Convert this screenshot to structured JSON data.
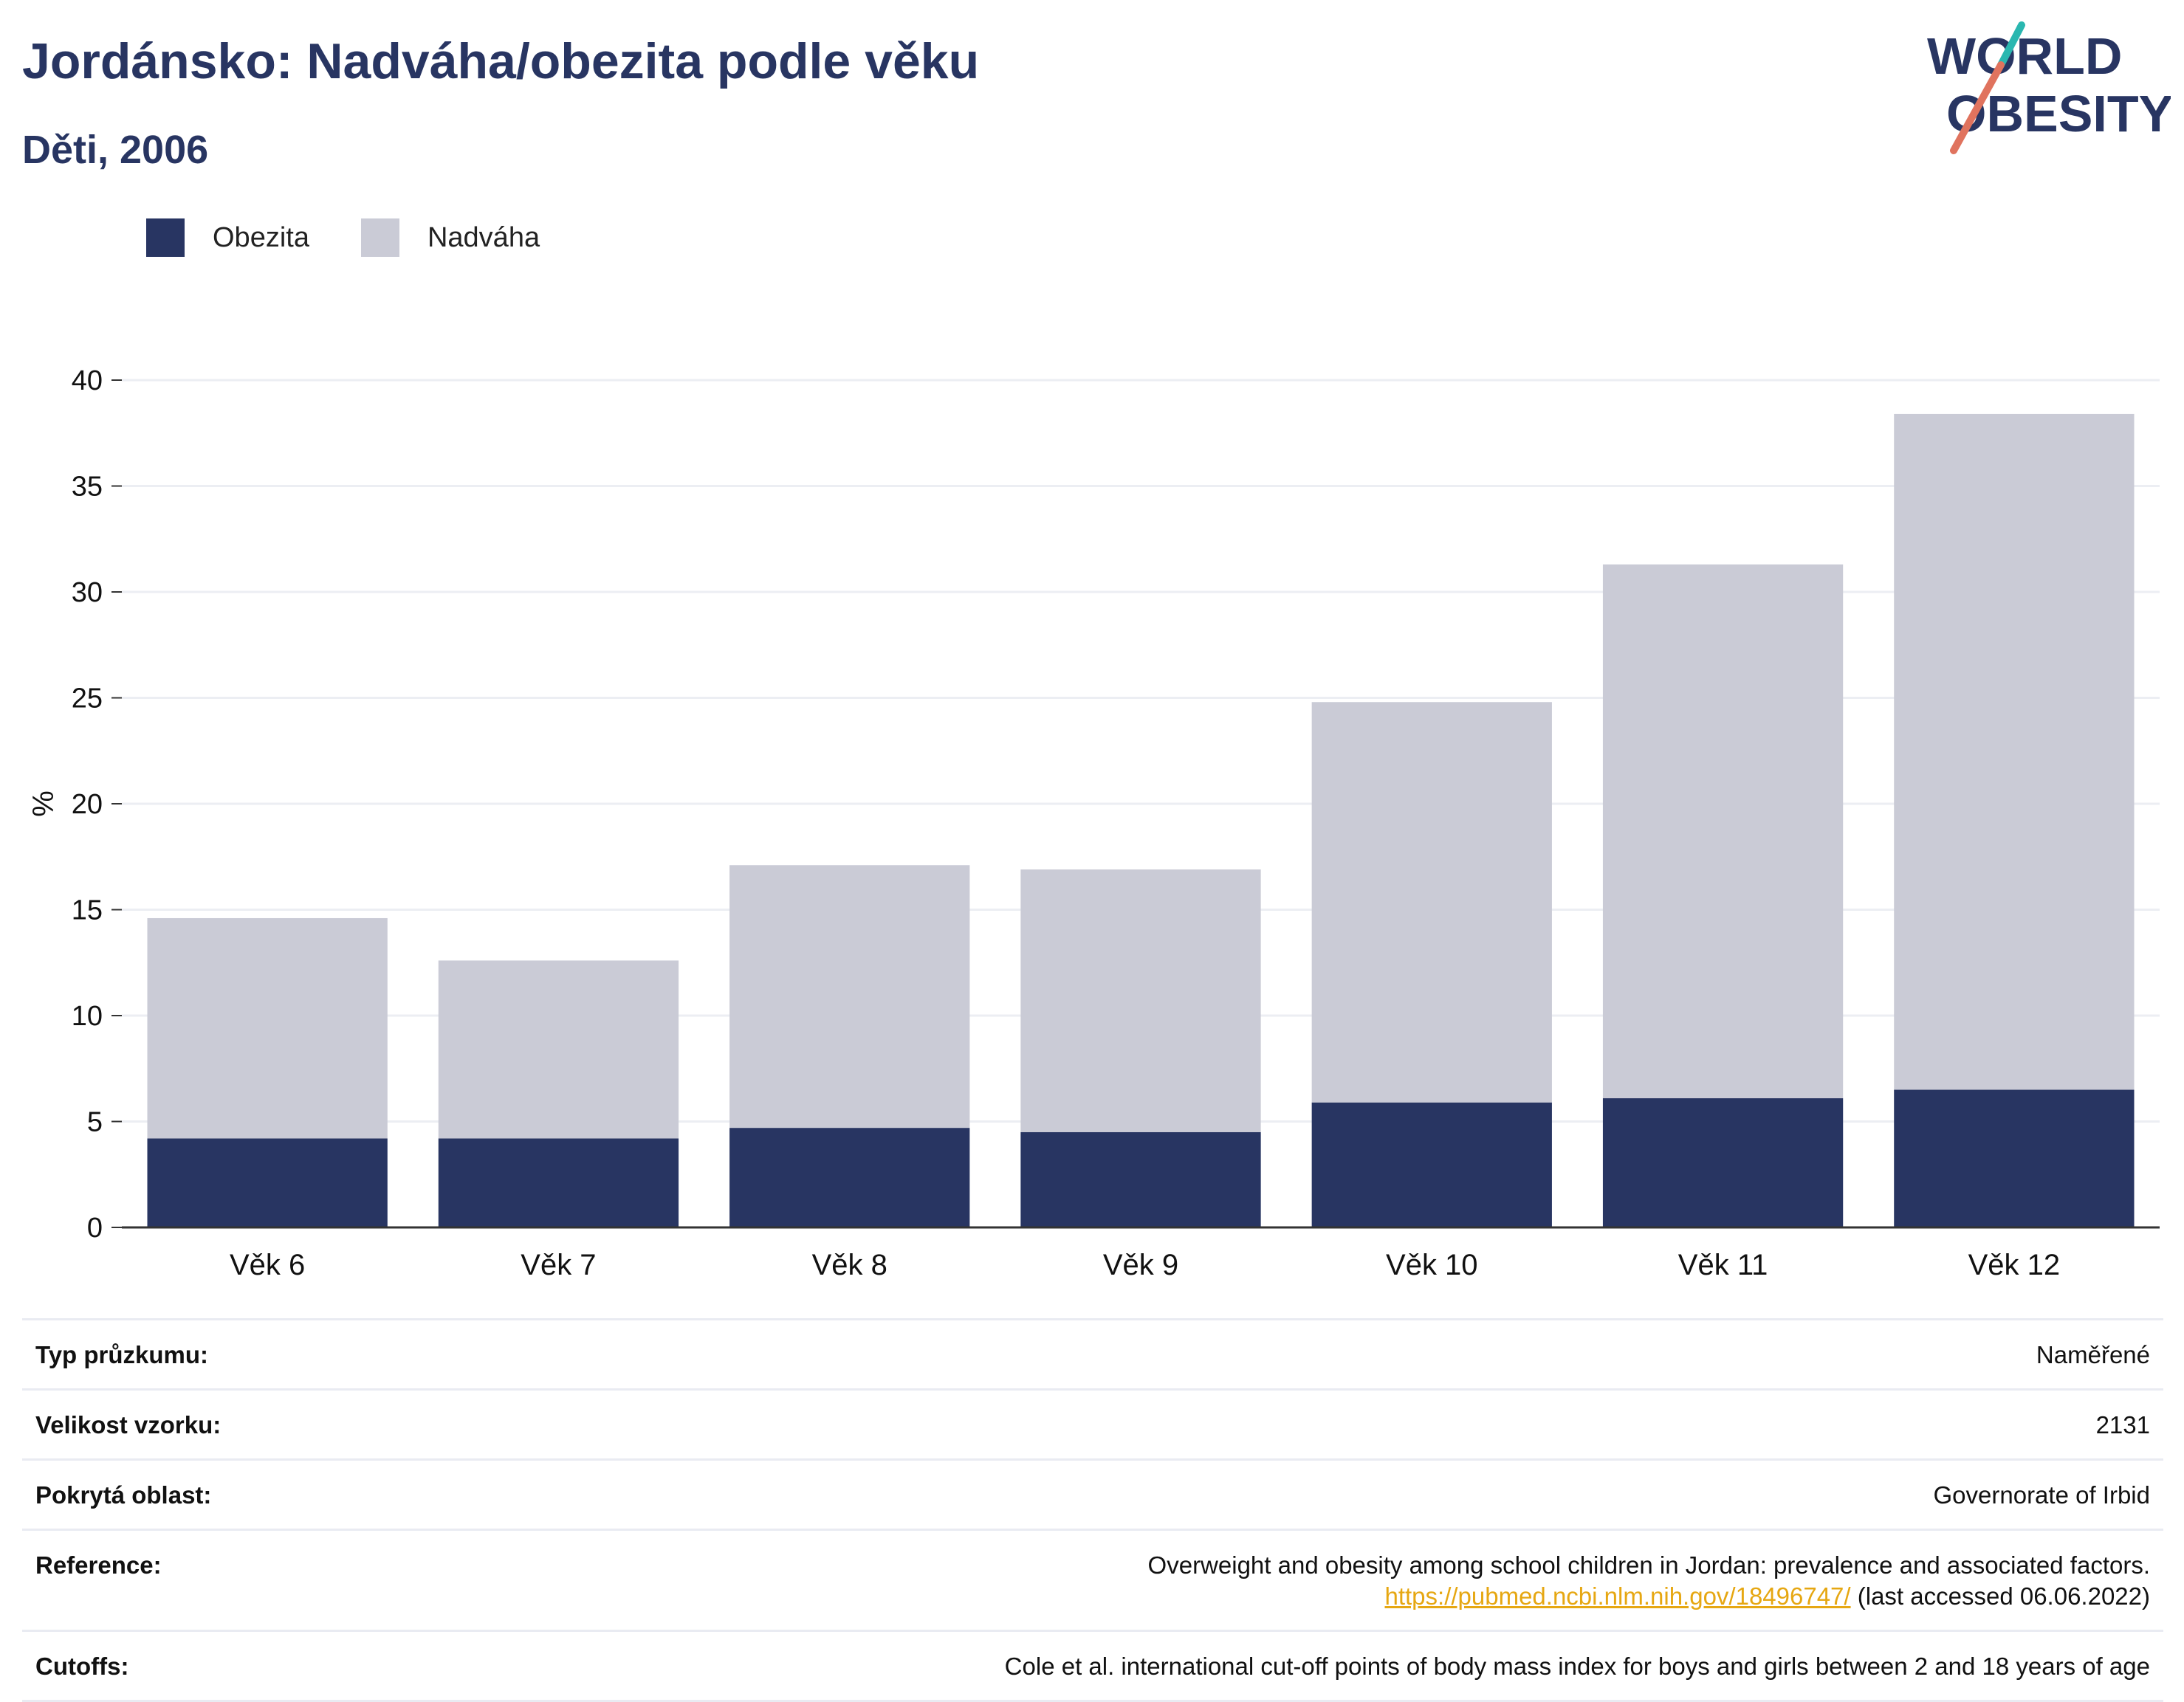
{
  "header": {
    "title": "Jordánsko: Nadváha/obezita podle věku",
    "subtitle": "Děti, 2006"
  },
  "logo": {
    "line1": "WORLD",
    "line2": "OBESITY"
  },
  "legend": [
    {
      "label": "Obezita",
      "color": "#283562"
    },
    {
      "label": "Nadváha",
      "color": "#cacbd6"
    }
  ],
  "chart_data": {
    "type": "bar",
    "stacked": true,
    "categories": [
      "Věk 6",
      "Věk 7",
      "Věk 8",
      "Věk 9",
      "Věk 10",
      "Věk 11",
      "Věk 12"
    ],
    "series": [
      {
        "name": "Obezita",
        "values": [
          4.2,
          4.2,
          4.7,
          4.5,
          5.9,
          6.1,
          6.5
        ],
        "color": "#283562"
      },
      {
        "name": "Nadváha",
        "values": [
          10.4,
          8.4,
          12.4,
          12.4,
          18.9,
          25.2,
          31.9
        ],
        "color": "#cacbd6"
      }
    ],
    "ylabel": "%",
    "ylim": [
      0,
      40
    ],
    "yticks": [
      0,
      5,
      10,
      15,
      20,
      25,
      30,
      35,
      40
    ],
    "grid": true,
    "legend_position": "top-left"
  },
  "meta": {
    "survey_type": {
      "label": "Typ průzkumu:",
      "value": "Naměřené"
    },
    "sample_size": {
      "label": "Velikost vzorku:",
      "value": "2131"
    },
    "area": {
      "label": "Pokrytá oblast:",
      "value": "Governorate of Irbid"
    },
    "reference": {
      "label": "Reference:",
      "text": "Overweight and obesity among school children in Jordan: prevalence and associated factors.",
      "url": "https://pubmed.ncbi.nlm.nih.gov/18496747/",
      "accessed": "(last accessed 06.06.2022)"
    },
    "cutoffs": {
      "label": "Cutoffs:",
      "value": "Cole et al. international cut-off points of body mass index for boys and girls between 2 and 18 years of age"
    }
  }
}
